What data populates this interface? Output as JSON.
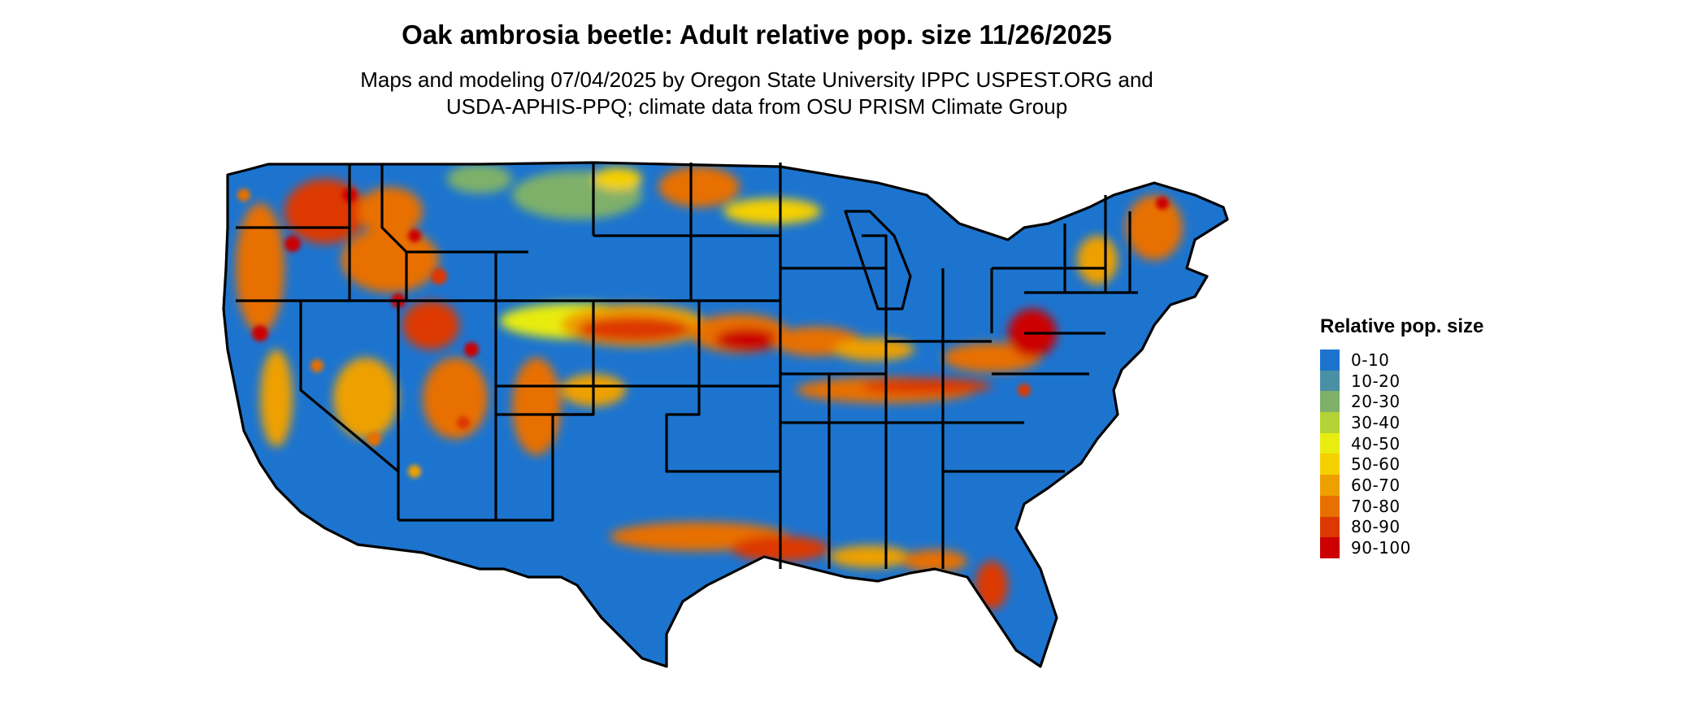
{
  "map": {
    "title": "Oak ambrosia beetle: Adult relative pop. size 11/26/2025",
    "subtitle_lines": [
      "Maps and modeling 07/04/2025 by Oregon State University IPPC USPEST.ORG and",
      "USDA-APHIS-PPQ; climate data from OSU PRISM Climate Group"
    ],
    "region": "Contiguous United States",
    "base_color": "#1c74cf",
    "boundary_color": "#000000"
  },
  "legend": {
    "title": "Relative pop. size",
    "items": [
      {
        "label": "0-10",
        "color": "#1c74cf"
      },
      {
        "label": "10-20",
        "color": "#4a90a4"
      },
      {
        "label": "20-30",
        "color": "#7fb069"
      },
      {
        "label": "30-40",
        "color": "#b5d334"
      },
      {
        "label": "40-50",
        "color": "#e8ec10"
      },
      {
        "label": "50-60",
        "color": "#f5d000"
      },
      {
        "label": "60-70",
        "color": "#eea000"
      },
      {
        "label": "70-80",
        "color": "#e87000"
      },
      {
        "label": "80-90",
        "color": "#dd3800"
      },
      {
        "label": "90-100",
        "color": "#cc0000"
      }
    ]
  }
}
